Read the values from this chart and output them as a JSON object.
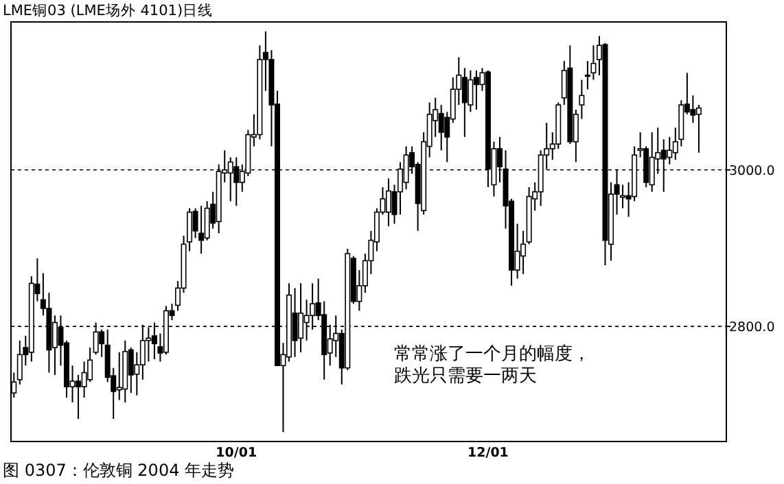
{
  "chart_data": {
    "type": "candlestick",
    "title": "LME铜03 (LME场外 4101)日线",
    "categories": [
      null,
      null,
      null,
      null,
      null,
      null,
      null,
      null,
      null,
      null,
      null,
      null,
      null,
      null,
      null,
      null,
      null,
      null,
      null,
      null,
      null,
      null,
      null,
      null,
      null,
      null,
      null,
      null,
      null,
      null,
      null,
      null,
      null,
      null,
      null,
      null,
      null,
      null,
      "10/01",
      null,
      null,
      null,
      null,
      null,
      null,
      null,
      null,
      null,
      null,
      null,
      null,
      null,
      null,
      null,
      null,
      null,
      null,
      null,
      null,
      null,
      null,
      null,
      null,
      null,
      null,
      null,
      null,
      null,
      null,
      null,
      null,
      null,
      null,
      null,
      null,
      null,
      null,
      null,
      null,
      null,
      null,
      "12/01",
      null,
      null,
      null,
      null,
      null,
      null,
      null,
      null,
      null,
      null,
      null,
      null,
      null,
      null,
      null,
      null,
      null,
      null,
      null,
      null,
      null,
      null,
      null,
      null,
      null,
      null,
      null,
      null,
      null,
      null,
      null,
      null,
      null,
      null,
      null,
      null
    ],
    "ohlc": [
      [
        2715,
        2741,
        2709,
        2729
      ],
      [
        2732,
        2782,
        2726,
        2764
      ],
      [
        2773,
        2788,
        2750,
        2764
      ],
      [
        2767,
        2864,
        2755,
        2855
      ],
      [
        2854,
        2887,
        2832,
        2842
      ],
      [
        2834,
        2868,
        2814,
        2823
      ],
      [
        2823,
        2843,
        2741,
        2770
      ],
      [
        2773,
        2814,
        2738,
        2805
      ],
      [
        2799,
        2814,
        2750,
        2776
      ],
      [
        2779,
        2782,
        2709,
        2723
      ],
      [
        2723,
        2750,
        2703,
        2730
      ],
      [
        2730,
        2738,
        2682,
        2723
      ],
      [
        2723,
        2755,
        2709,
        2741
      ],
      [
        2732,
        2773,
        2729,
        2757
      ],
      [
        2767,
        2805,
        2764,
        2793
      ],
      [
        2793,
        2796,
        2761,
        2778
      ],
      [
        2776,
        2796,
        2729,
        2735
      ],
      [
        2737,
        2747,
        2682,
        2717
      ],
      [
        2719,
        2767,
        2706,
        2722
      ],
      [
        2720,
        2782,
        2703,
        2768
      ],
      [
        2770,
        2773,
        2715,
        2738
      ],
      [
        2739,
        2767,
        2712,
        2751
      ],
      [
        2751,
        2802,
        2732,
        2782
      ],
      [
        2782,
        2799,
        2755,
        2785
      ],
      [
        2788,
        2805,
        2758,
        2778
      ],
      [
        2774,
        2791,
        2755,
        2766
      ],
      [
        2767,
        2826,
        2764,
        2820
      ],
      [
        2820,
        2829,
        2808,
        2814
      ],
      [
        2827,
        2858,
        2820,
        2849
      ],
      [
        2849,
        2916,
        2843,
        2905
      ],
      [
        2908,
        2951,
        2896,
        2946
      ],
      [
        2947,
        2951,
        2913,
        2922
      ],
      [
        2919,
        2954,
        2893,
        2910
      ],
      [
        2913,
        2960,
        2910,
        2951
      ],
      [
        2956,
        2972,
        2925,
        2932
      ],
      [
        2934,
        3007,
        2919,
        2998
      ],
      [
        2996,
        3025,
        2984,
        3000
      ],
      [
        2996,
        3016,
        2960,
        3010
      ],
      [
        3004,
        3016,
        2954,
        2984
      ],
      [
        2984,
        3007,
        2972,
        2998
      ],
      [
        2996,
        3051,
        2992,
        3045
      ],
      [
        3042,
        3071,
        3030,
        3045
      ],
      [
        3045,
        3159,
        3039,
        3141
      ],
      [
        3150,
        3177,
        3101,
        3141
      ],
      [
        3141,
        3153,
        3030,
        3083
      ],
      [
        3084,
        3101,
        2750,
        2750
      ],
      [
        2750,
        2779,
        2665,
        2764
      ],
      [
        2761,
        2855,
        2755,
        2840
      ],
      [
        2817,
        2849,
        2761,
        2782
      ],
      [
        2785,
        2855,
        2767,
        2817
      ],
      [
        2805,
        2834,
        2782,
        2814
      ],
      [
        2814,
        2855,
        2796,
        2829
      ],
      [
        2830,
        2861,
        2808,
        2814
      ],
      [
        2815,
        2832,
        2732,
        2764
      ],
      [
        2766,
        2802,
        2750,
        2784
      ],
      [
        2782,
        2814,
        2761,
        2791
      ],
      [
        2791,
        2796,
        2726,
        2747
      ],
      [
        2747,
        2899,
        2744,
        2893
      ],
      [
        2887,
        2890,
        2829,
        2832
      ],
      [
        2832,
        2872,
        2820,
        2852
      ],
      [
        2852,
        2893,
        2843,
        2884
      ],
      [
        2884,
        2922,
        2867,
        2910
      ],
      [
        2908,
        2951,
        2896,
        2946
      ],
      [
        2946,
        2978,
        2943,
        2963
      ],
      [
        2946,
        2989,
        2928,
        2973
      ],
      [
        2972,
        2981,
        2931,
        2943
      ],
      [
        2972,
        3010,
        2943,
        3001
      ],
      [
        2984,
        3030,
        2975,
        3019
      ],
      [
        3022,
        3030,
        2995,
        3004
      ],
      [
        3007,
        3010,
        2922,
        2957
      ],
      [
        2948,
        3048,
        2943,
        3036
      ],
      [
        3030,
        3086,
        3016,
        3071
      ],
      [
        3063,
        3092,
        3042,
        3077
      ],
      [
        3072,
        3083,
        3025,
        3048
      ],
      [
        3067,
        3074,
        3010,
        3042
      ],
      [
        3065,
        3118,
        3060,
        3103
      ],
      [
        3103,
        3144,
        3083,
        3121
      ],
      [
        3118,
        3130,
        3042,
        3086
      ],
      [
        3083,
        3127,
        3074,
        3115
      ],
      [
        3118,
        3127,
        3077,
        3109
      ],
      [
        3109,
        3130,
        3101,
        3124
      ],
      [
        3125,
        3127,
        2978,
        3001
      ],
      [
        2981,
        3036,
        2966,
        3027
      ],
      [
        3027,
        3042,
        2984,
        3004
      ],
      [
        3001,
        3025,
        2925,
        2954
      ],
      [
        2960,
        2963,
        2852,
        2872
      ],
      [
        2872,
        2931,
        2861,
        2896
      ],
      [
        2890,
        2922,
        2867,
        2905
      ],
      [
        2908,
        2978,
        2905,
        2966
      ],
      [
        2963,
        2984,
        2948,
        2972
      ],
      [
        2972,
        3025,
        2954,
        3019
      ],
      [
        3019,
        3060,
        3001,
        3027
      ],
      [
        3027,
        3048,
        3013,
        3033
      ],
      [
        3033,
        3086,
        3027,
        3083
      ],
      [
        3092,
        3139,
        3083,
        3127
      ],
      [
        3130,
        3159,
        3033,
        3036
      ],
      [
        3036,
        3077,
        3010,
        3071
      ],
      [
        3083,
        3115,
        3065,
        3095
      ],
      [
        3120,
        3139,
        3103,
        3121
      ],
      [
        3124,
        3159,
        3115,
        3136
      ],
      [
        3141,
        3171,
        3121,
        3159
      ],
      [
        3160,
        3162,
        2878,
        2910
      ],
      [
        2905,
        2984,
        2884,
        2969
      ],
      [
        2981,
        3001,
        2943,
        2969
      ],
      [
        2965,
        2981,
        2951,
        2967
      ],
      [
        2967,
        2984,
        2940,
        2963
      ],
      [
        2966,
        3030,
        2960,
        3019
      ],
      [
        3025,
        3048,
        3016,
        3027
      ],
      [
        3027,
        3030,
        2978,
        2984
      ],
      [
        2981,
        3048,
        2972,
        3016
      ],
      [
        3014,
        3054,
        2995,
        3022
      ],
      [
        3025,
        3039,
        2972,
        3014
      ],
      [
        3016,
        3042,
        3007,
        3025
      ],
      [
        3022,
        3054,
        3013,
        3036
      ],
      [
        3039,
        3089,
        3030,
        3083
      ],
      [
        3084,
        3124,
        3071,
        3074
      ],
      [
        3077,
        3095,
        3060,
        3070
      ],
      [
        3071,
        3083,
        3022,
        3079
      ]
    ],
    "ylim": [
      2653,
      3189
    ],
    "yticks": [
      {
        "value": 2800,
        "label": "2800.0"
      },
      {
        "value": 3000,
        "label": "3000.0"
      }
    ],
    "grid": "y",
    "annotations": [
      "常常涨了一个月的幅度，跌光只需要一两天",
      "图 0307：伦敦铜 2004 年走势"
    ]
  }
}
